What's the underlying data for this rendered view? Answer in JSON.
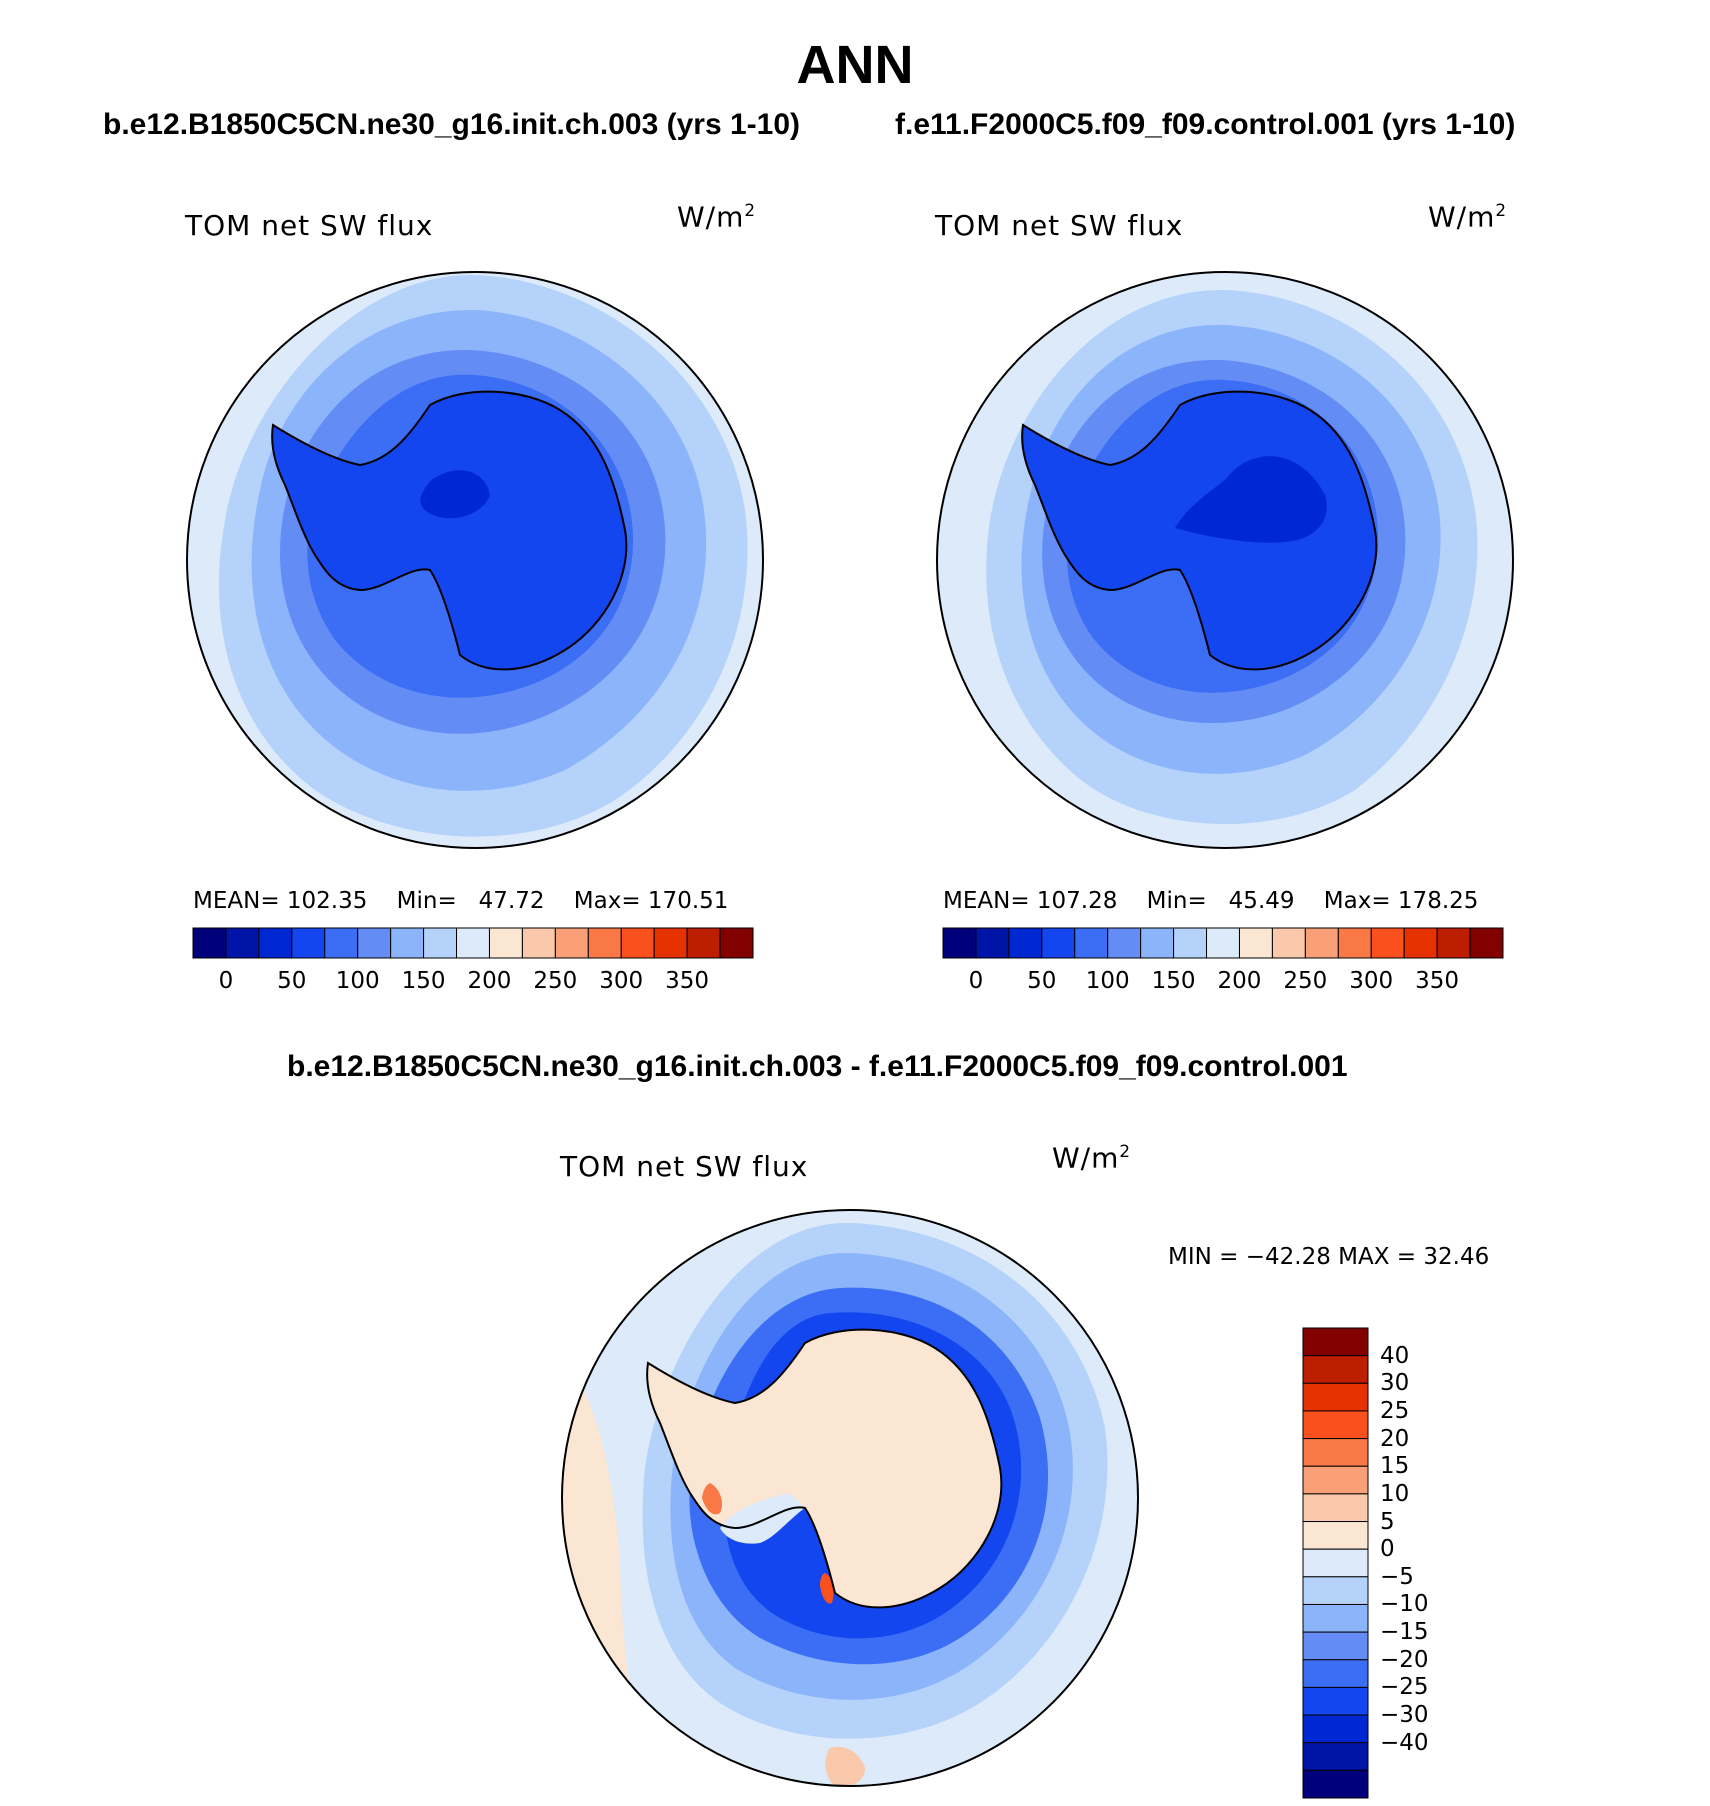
{
  "title": "ANN",
  "panels": [
    {
      "case": "b.e12.B1850C5CN.ne30_g16.init.ch.003 (yrs 1-10)",
      "variable": "TOM net SW flux",
      "units": "W/m",
      "units_sup": "2",
      "stats": {
        "mean_label": "MEAN=",
        "mean": "102.35",
        "min_label": "Min=",
        "min": "47.72",
        "max_label": "Max=",
        "max": "170.51"
      },
      "colorbar_ticks": [
        "0",
        "50",
        "100",
        "150",
        "200",
        "250",
        "300",
        "350"
      ]
    },
    {
      "case": "f.e11.F2000C5.f09_f09.control.001 (yrs 1-10)",
      "variable": "TOM net SW flux",
      "units": "W/m",
      "units_sup": "2",
      "stats": {
        "mean_label": "MEAN=",
        "mean": "107.28",
        "min_label": "Min=",
        "min": "45.49",
        "max_label": "Max=",
        "max": "178.25"
      },
      "colorbar_ticks": [
        "0",
        "50",
        "100",
        "150",
        "200",
        "250",
        "300",
        "350"
      ]
    }
  ],
  "difference": {
    "title": "b.e12.B1850C5CN.ne30_g16.init.ch.003 - f.e11.F2000C5.f09_f09.control.001",
    "variable": "TOM net SW flux",
    "units": "W/m",
    "units_sup": "2",
    "minmax": "MIN = −42.28 MAX =   32.46",
    "colorbar_ticks": [
      "40",
      "30",
      "25",
      "20",
      "15",
      "10",
      "5",
      "0",
      "−5",
      "−10",
      "−15",
      "−20",
      "−25",
      "−30",
      "−40"
    ]
  },
  "colors": {
    "field_scale": [
      "#00007a",
      "#0014a8",
      "#0028d2",
      "#1446f0",
      "#3c6ef5",
      "#648cf5",
      "#8cb4fa",
      "#b4d2fa",
      "#dceafa",
      "#fae6d2",
      "#fac8aa",
      "#faa078",
      "#fa7846",
      "#fa501e",
      "#e63200",
      "#be1e00",
      "#820000"
    ],
    "diff_scale": [
      "#820000",
      "#be1e00",
      "#e63200",
      "#fa501e",
      "#fa7846",
      "#faa078",
      "#fac8aa",
      "#fae6d2",
      "#dceafa",
      "#b4d2fa",
      "#8cb4fa",
      "#648cf5",
      "#3c6ef5",
      "#1446f0",
      "#0028d2",
      "#0014a8",
      "#00007a"
    ]
  }
}
